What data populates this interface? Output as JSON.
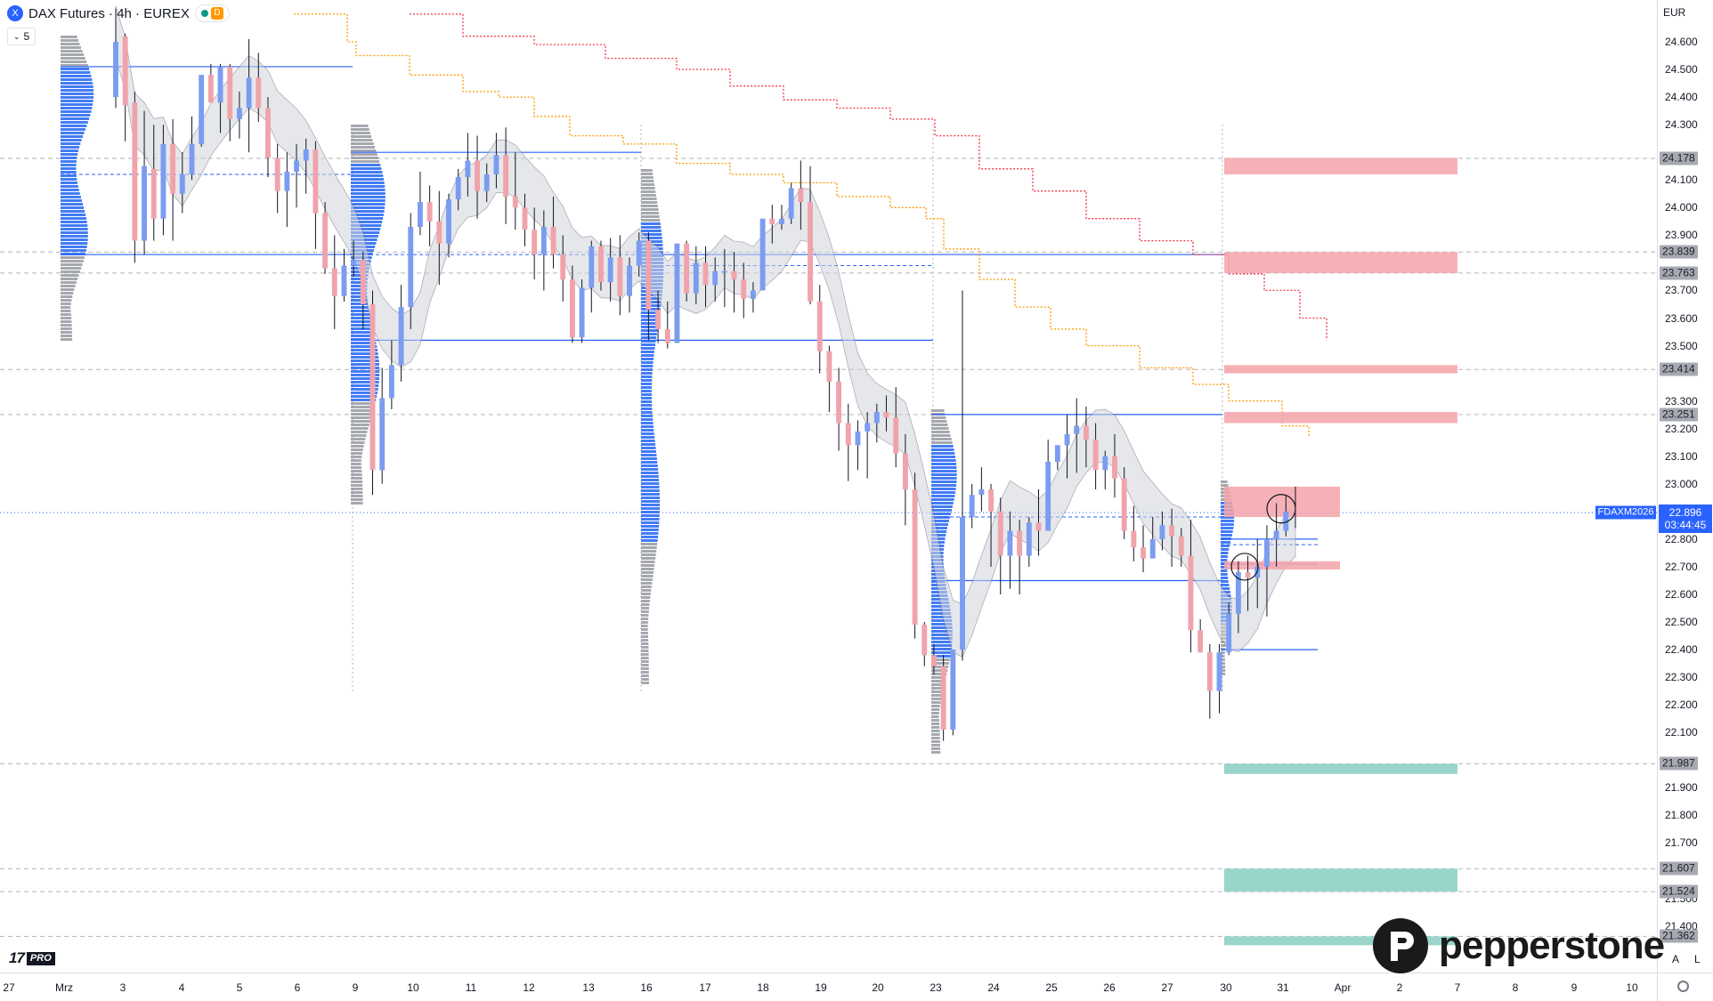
{
  "header": {
    "symbol_icon": "X",
    "title": "DAX Futures · 4h · EUREX",
    "session_badge": "D",
    "collapse_count": "5"
  },
  "currency": "EUR",
  "price_axis": {
    "labels": [
      "24.600",
      "24.500",
      "24.400",
      "24.300",
      "24.100",
      "24.000",
      "23.900",
      "23.700",
      "23.600",
      "23.500",
      "23.300",
      "23.200",
      "23.100",
      "23.000",
      "22.800",
      "22.700",
      "22.600",
      "22.500",
      "22.400",
      "22.300",
      "22.200",
      "22.100",
      "21.900",
      "21.800",
      "21.700",
      "21.500",
      "21.400"
    ],
    "level_tags": [
      "24.178",
      "23.839",
      "23.763",
      "23.414",
      "23.251",
      "21.987",
      "21.607",
      "21.524",
      "21.362"
    ],
    "last_price": "22.896",
    "countdown": "03:44:45",
    "contract": "FDAXM2026"
  },
  "time_axis": {
    "labels": [
      "27",
      "Mrz",
      "3",
      "4",
      "5",
      "6",
      "9",
      "10",
      "11",
      "12",
      "13",
      "16",
      "17",
      "18",
      "19",
      "20",
      "23",
      "24",
      "25",
      "26",
      "27",
      "30",
      "31",
      "Apr",
      "2",
      "7",
      "8",
      "9",
      "10"
    ]
  },
  "colors": {
    "up": "#7b9cf0",
    "down": "#f0a3ab",
    "accent": "#2962ff",
    "resistance_zone": "#f5a3aa",
    "support_zone": "#93d3c8",
    "trail_orange": "#ff9800",
    "trail_red": "#f23645"
  },
  "chart_data": {
    "type": "candlestick",
    "title": "DAX Futures · 4h · EUREX",
    "x_labels": [
      "27",
      "Mrz",
      "3",
      "4",
      "5",
      "6",
      "9",
      "10",
      "11",
      "12",
      "13",
      "16",
      "17",
      "18",
      "19",
      "20",
      "23",
      "24",
      "25",
      "26",
      "27",
      "30",
      "31",
      "Apr",
      "2",
      "7",
      "8",
      "9",
      "10"
    ],
    "y_range": [
      21350,
      24700
    ],
    "y_labels": [
      "24.600",
      "24.500",
      "24.400",
      "24.300",
      "24.100",
      "24.000",
      "23.900",
      "23.700",
      "23.600",
      "23.500",
      "23.300",
      "23.200",
      "23.100",
      "23.000",
      "22.800",
      "22.700",
      "22.600",
      "22.500",
      "22.400",
      "22.300",
      "22.200",
      "22.100",
      "21.900",
      "21.800",
      "21.700",
      "21.500",
      "21.400"
    ],
    "candles": [
      [
        24400,
        24720,
        24600,
        24360
      ],
      [
        24620,
        24630,
        24370,
        24240
      ],
      [
        24380,
        24420,
        23880,
        23800
      ],
      [
        23880,
        24350,
        24150,
        23830
      ],
      [
        24140,
        24300,
        23960,
        23880
      ],
      [
        23960,
        24300,
        24230,
        23900
      ],
      [
        24230,
        24320,
        24050,
        23880
      ],
      [
        24050,
        24200,
        24120,
        23980
      ],
      [
        24120,
        24330,
        24230,
        24100
      ],
      [
        24230,
        24480,
        24480,
        24220
      ],
      [
        24480,
        24520,
        24380,
        24380
      ],
      [
        24380,
        24520,
        24510,
        24270
      ],
      [
        24510,
        24520,
        24320,
        24240
      ],
      [
        24320,
        24420,
        24360,
        24250
      ],
      [
        24360,
        24610,
        24470,
        24200
      ],
      [
        24470,
        24560,
        24360,
        24310
      ],
      [
        24360,
        24400,
        24180,
        24110
      ],
      [
        24180,
        24230,
        24060,
        23980
      ],
      [
        24060,
        24200,
        24130,
        23930
      ],
      [
        24130,
        24230,
        24170,
        24000
      ],
      [
        24170,
        24250,
        24210,
        24050
      ],
      [
        24210,
        24240,
        23980,
        23850
      ],
      [
        23980,
        24020,
        23780,
        23760
      ],
      [
        23780,
        23900,
        23680,
        23560
      ],
      [
        23680,
        23850,
        23790,
        23660
      ],
      [
        23790,
        23880,
        23810,
        23750
      ],
      [
        23810,
        23840,
        23650,
        23560
      ],
      [
        23650,
        23700,
        23050,
        22960
      ],
      [
        23050,
        23420,
        23310,
        23000
      ],
      [
        23310,
        23520,
        23430,
        23270
      ],
      [
        23430,
        23720,
        23640,
        23370
      ],
      [
        23640,
        23980,
        23930,
        23560
      ],
      [
        23930,
        24130,
        24020,
        23900
      ],
      [
        24020,
        24080,
        23950,
        23860
      ],
      [
        23950,
        24060,
        23870,
        23720
      ],
      [
        23870,
        24050,
        24030,
        23820
      ],
      [
        24030,
        24140,
        24110,
        23990
      ],
      [
        24110,
        24270,
        24170,
        24040
      ],
      [
        24170,
        24260,
        24060,
        23960
      ],
      [
        24060,
        24160,
        24120,
        24020
      ],
      [
        24120,
        24270,
        24190,
        24070
      ],
      [
        24190,
        24290,
        24040,
        23940
      ],
      [
        24040,
        24200,
        24000,
        23920
      ],
      [
        24000,
        24050,
        23920,
        23860
      ],
      [
        23920,
        24000,
        23830,
        23740
      ],
      [
        23830,
        23990,
        23930,
        23700
      ],
      [
        23930,
        24040,
        23830,
        23780
      ],
      [
        23830,
        23900,
        23740,
        23660
      ],
      [
        23740,
        23790,
        23530,
        23510
      ],
      [
        23530,
        23740,
        23710,
        23510
      ],
      [
        23710,
        23880,
        23860,
        23620
      ],
      [
        23860,
        23880,
        23730,
        23700
      ],
      [
        23730,
        23890,
        23820,
        23660
      ],
      [
        23820,
        23900,
        23680,
        23610
      ],
      [
        23680,
        23820,
        23790,
        23620
      ],
      [
        23790,
        23910,
        23880,
        23750
      ],
      [
        23880,
        23910,
        23630,
        23520
      ],
      [
        23630,
        23700,
        23560,
        23510
      ],
      [
        23560,
        23660,
        23510,
        23490
      ],
      [
        23510,
        23740,
        23870,
        23620
      ],
      [
        23870,
        23880,
        23690,
        23660
      ],
      [
        23690,
        23860,
        23800,
        23650
      ],
      [
        23800,
        23860,
        23720,
        23640
      ],
      [
        23720,
        23820,
        23770,
        23660
      ],
      [
        23770,
        23850,
        23770,
        23640
      ],
      [
        23770,
        23840,
        23740,
        23620
      ],
      [
        23740,
        23800,
        23670,
        23600
      ],
      [
        23670,
        23730,
        23700,
        23620
      ],
      [
        23700,
        23880,
        23960,
        23840
      ],
      [
        23960,
        24010,
        23940,
        23870
      ],
      [
        23940,
        24010,
        23960,
        23920
      ],
      [
        23960,
        24090,
        24070,
        23940
      ],
      [
        24070,
        24170,
        24020,
        23920
      ],
      [
        24020,
        24150,
        23660,
        23650
      ],
      [
        23660,
        23720,
        23480,
        23400
      ],
      [
        23480,
        23500,
        23370,
        23260
      ],
      [
        23370,
        23420,
        23220,
        23120
      ],
      [
        23220,
        23290,
        23140,
        23010
      ],
      [
        23140,
        23230,
        23190,
        23050
      ],
      [
        23190,
        23260,
        23220,
        23020
      ],
      [
        23220,
        23290,
        23260,
        23150
      ],
      [
        23260,
        23320,
        23240,
        23190
      ],
      [
        23240,
        23350,
        23110,
        23060
      ],
      [
        23110,
        23180,
        22980,
        22850
      ],
      [
        22980,
        23040,
        22490,
        22440
      ],
      [
        22490,
        22500,
        22380,
        22340
      ],
      [
        22380,
        22420,
        22340,
        22310
      ],
      [
        22340,
        22380,
        22110,
        22070
      ],
      [
        22110,
        22250,
        22400,
        22090
      ],
      [
        22400,
        23700,
        22880,
        22360
      ],
      [
        22880,
        23000,
        22960,
        22840
      ],
      [
        22960,
        23060,
        22980,
        22900
      ],
      [
        22980,
        23000,
        22900,
        22700
      ],
      [
        22900,
        22950,
        22740,
        22600
      ],
      [
        22740,
        22900,
        22830,
        22620
      ],
      [
        22830,
        22870,
        22740,
        22600
      ],
      [
        22740,
        22880,
        22860,
        22700
      ],
      [
        22860,
        22980,
        22830,
        22740
      ],
      [
        22830,
        23160,
        23080,
        22860
      ],
      [
        23080,
        23130,
        23140,
        23050
      ],
      [
        23140,
        23250,
        23180,
        23020
      ],
      [
        23180,
        23310,
        23210,
        23040
      ],
      [
        23210,
        23280,
        23160,
        23060
      ],
      [
        23160,
        23220,
        23050,
        22980
      ],
      [
        23050,
        23120,
        23100,
        22980
      ],
      [
        23100,
        23180,
        23020,
        22950
      ],
      [
        23020,
        23060,
        22830,
        22800
      ],
      [
        22830,
        22920,
        22770,
        22720
      ],
      [
        22770,
        22850,
        22730,
        22680
      ],
      [
        22730,
        22880,
        22800,
        22750
      ],
      [
        22800,
        22900,
        22850,
        22760
      ],
      [
        22850,
        22910,
        22810,
        22700
      ],
      [
        22810,
        22840,
        22740,
        22700
      ],
      [
        22740,
        22870,
        22470,
        22390
      ],
      [
        22470,
        22510,
        22390,
        22390
      ],
      [
        22390,
        22420,
        22250,
        22150
      ],
      [
        22250,
        22420,
        22390,
        22170
      ],
      [
        22390,
        22570,
        22530,
        22380
      ],
      [
        22530,
        22720,
        22680,
        22460
      ],
      [
        22680,
        22740,
        22660,
        22540
      ],
      [
        22660,
        22800,
        22700,
        22550
      ],
      [
        22700,
        22850,
        22800,
        22520
      ],
      [
        22800,
        22930,
        22830,
        22700
      ],
      [
        22830,
        22960,
        22900,
        22810
      ],
      [
        22900,
        22990,
        22896,
        22840
      ]
    ],
    "profile_levels": {
      "vah": [
        24510,
        24200,
        23830,
        23251,
        22800,
        22710
      ],
      "poc": [
        24120,
        23830,
        23790,
        22880,
        22780
      ],
      "val": [
        23830,
        23520,
        23520,
        22650,
        22400
      ]
    },
    "zones": {
      "resistance": [
        [
          24120,
          24180
        ],
        [
          23763,
          23839
        ],
        [
          23400,
          23430
        ],
        [
          23220,
          23260
        ],
        [
          22880,
          22990
        ],
        [
          22690,
          22720
        ]
      ],
      "support": [
        [
          21950,
          21987
        ],
        [
          21524,
          21607
        ],
        [
          21330,
          21362
        ]
      ]
    }
  },
  "footer": {
    "brand": "pepperstone",
    "tv_pro": "PRO",
    "auto_label": "A",
    "log_label": "L"
  }
}
